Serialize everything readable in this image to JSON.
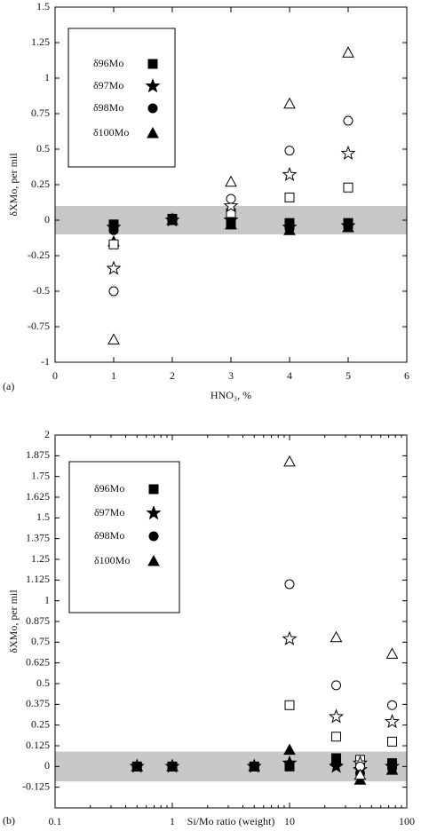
{
  "chart_data": [
    {
      "type": "scatter",
      "panel": "(a)",
      "x_label": "HNO₃, %",
      "y_label": "δXMo, per mil",
      "xlim": [
        0,
        6
      ],
      "xticks": [
        0,
        1,
        2,
        3,
        4,
        5,
        6
      ],
      "ylim": [
        -1,
        1.5
      ],
      "yticks": [
        -1,
        -0.75,
        -0.5,
        -0.25,
        0,
        0.25,
        0.5,
        0.75,
        1,
        1.25,
        1.5
      ],
      "band": [
        -0.1,
        0.1
      ],
      "band_color": "#c8c8c8",
      "x": [
        1,
        2,
        3,
        4,
        5
      ],
      "series": [
        {
          "name": "δ96Mo",
          "marker": "square",
          "filled": true,
          "values": [
            -0.03,
            0.01,
            -0.03,
            -0.02,
            -0.02
          ]
        },
        {
          "name": "δ97Mo",
          "marker": "star",
          "filled": true,
          "values": [
            -0.05,
            0,
            0,
            -0.05,
            -0.04
          ]
        },
        {
          "name": "δ98Mo",
          "marker": "circle",
          "filled": true,
          "values": [
            -0.07,
            0,
            -0.02,
            -0.06,
            -0.05
          ]
        },
        {
          "name": "δ100Mo",
          "marker": "triangle",
          "filled": true,
          "values": [
            -0.15,
            0,
            -0.03,
            -0.07,
            -0.05
          ]
        },
        {
          "marker": "square",
          "filled": false,
          "values": [
            -0.17,
            null,
            0.05,
            0.16,
            0.23
          ]
        },
        {
          "marker": "star",
          "filled": false,
          "values": [
            -0.34,
            null,
            0.1,
            0.32,
            0.47
          ]
        },
        {
          "marker": "circle",
          "filled": false,
          "values": [
            -0.5,
            null,
            0.15,
            0.49,
            0.7
          ]
        },
        {
          "marker": "triangle",
          "filled": false,
          "values": [
            -0.84,
            null,
            0.27,
            0.82,
            1.18
          ]
        }
      ]
    },
    {
      "type": "scatter",
      "panel": "(b)",
      "x_label": "Si/Mo ratio (weight)",
      "y_label": "δXMo, per mil",
      "xscale": "log",
      "xlim": [
        0.1,
        100
      ],
      "xticks": [
        0.1,
        1,
        10,
        100
      ],
      "ylim": [
        -0.25,
        2
      ],
      "yticks": [
        -0.125,
        0,
        0.125,
        0.25,
        0.375,
        0.5,
        0.625,
        0.75,
        0.875,
        1,
        1.125,
        1.25,
        1.375,
        1.5,
        1.625,
        1.75,
        1.875,
        2
      ],
      "band": [
        -0.09,
        0.09
      ],
      "band_color": "#c8c8c8",
      "x": [
        0.5,
        1,
        5,
        10,
        25,
        40,
        75
      ],
      "series": [
        {
          "name": "δ96Mo",
          "marker": "square",
          "filled": true,
          "values": [
            0,
            0,
            0,
            0,
            0.05,
            0.01,
            0.02
          ]
        },
        {
          "name": "δ97Mo",
          "marker": "star",
          "filled": true,
          "values": [
            0,
            0,
            0,
            0.02,
            0,
            -0.02,
            0
          ]
        },
        {
          "name": "δ98Mo",
          "marker": "circle",
          "filled": true,
          "values": [
            0,
            0,
            0,
            0.01,
            0.04,
            -0.04,
            -0.01
          ]
        },
        {
          "name": "δ100Mo",
          "marker": "triangle",
          "filled": true,
          "values": [
            0,
            0,
            0,
            0.1,
            0.04,
            -0.08,
            -0.02
          ]
        },
        {
          "marker": "square",
          "filled": false,
          "values": [
            null,
            null,
            null,
            0.37,
            0.18,
            0.04,
            0.15
          ]
        },
        {
          "marker": "star",
          "filled": false,
          "values": [
            null,
            null,
            null,
            0.77,
            0.3,
            0.02,
            0.27
          ]
        },
        {
          "marker": "circle",
          "filled": false,
          "values": [
            null,
            null,
            null,
            1.1,
            0.49,
            0,
            0.37
          ]
        },
        {
          "marker": "triangle",
          "filled": false,
          "values": [
            null,
            null,
            null,
            1.84,
            0.78,
            -0.05,
            0.68
          ]
        }
      ]
    }
  ]
}
